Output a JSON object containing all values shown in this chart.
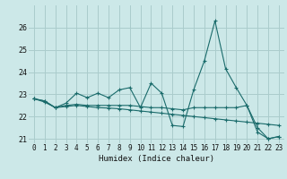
{
  "xlabel": "Humidex (Indice chaleur)",
  "background_color": "#cce8e8",
  "grid_color": "#aacccc",
  "line_color": "#1a6b6b",
  "x": [
    0,
    1,
    2,
    3,
    4,
    5,
    6,
    7,
    8,
    9,
    10,
    11,
    12,
    13,
    14,
    15,
    16,
    17,
    18,
    19,
    20,
    21,
    22,
    23
  ],
  "series1": [
    22.8,
    22.7,
    22.4,
    22.6,
    23.05,
    22.85,
    23.05,
    22.85,
    23.2,
    23.3,
    22.4,
    23.5,
    23.05,
    21.6,
    21.55,
    23.2,
    24.5,
    26.3,
    24.15,
    23.3,
    22.5,
    21.5,
    21.0,
    21.1
  ],
  "series2": [
    22.8,
    22.7,
    22.4,
    22.5,
    22.55,
    22.5,
    22.5,
    22.5,
    22.5,
    22.5,
    22.45,
    22.4,
    22.4,
    22.35,
    22.3,
    22.4,
    22.4,
    22.4,
    22.4,
    22.4,
    22.5,
    21.3,
    21.0,
    21.1
  ],
  "series3": [
    22.8,
    22.65,
    22.4,
    22.45,
    22.5,
    22.45,
    22.4,
    22.38,
    22.35,
    22.3,
    22.25,
    22.2,
    22.15,
    22.1,
    22.05,
    22.0,
    21.95,
    21.9,
    21.85,
    21.8,
    21.75,
    21.7,
    21.65,
    21.6
  ],
  "ylim": [
    20.8,
    27.0
  ],
  "yticks": [
    21,
    22,
    23,
    24,
    25,
    26
  ],
  "xlim": [
    -0.5,
    23.5
  ],
  "xticks": [
    0,
    1,
    2,
    3,
    4,
    5,
    6,
    7,
    8,
    9,
    10,
    11,
    12,
    13,
    14,
    15,
    16,
    17,
    18,
    19,
    20,
    21,
    22,
    23
  ]
}
